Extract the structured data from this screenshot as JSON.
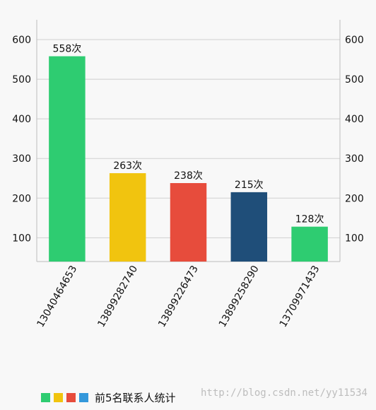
{
  "chart_data": {
    "type": "bar",
    "categories": [
      "13040464653",
      "13899282740",
      "13899226473",
      "13899258290",
      "13709971433"
    ],
    "values": [
      558,
      263,
      238,
      215,
      128
    ],
    "value_labels": [
      "558次",
      "263次",
      "238次",
      "215次",
      "128次"
    ],
    "bar_colors": [
      "#2ecc71",
      "#f1c40f",
      "#e74c3c",
      "#1f4e79",
      "#2ecc71"
    ],
    "ylim": [
      40,
      650
    ],
    "y_ticks": [
      100,
      200,
      300,
      400,
      500,
      600
    ],
    "y_tick_labels": [
      "100",
      "200",
      "300",
      "400",
      "500",
      "600"
    ],
    "grid": "horizontal",
    "legend_position": "bottom-left",
    "legend": {
      "label": "前5名联系人统计",
      "swatch_colors": [
        "#2ecc71",
        "#f1c40f",
        "#e74c3c",
        "#3498db"
      ]
    }
  },
  "watermark": "http://blog.csdn.net/yy11534"
}
